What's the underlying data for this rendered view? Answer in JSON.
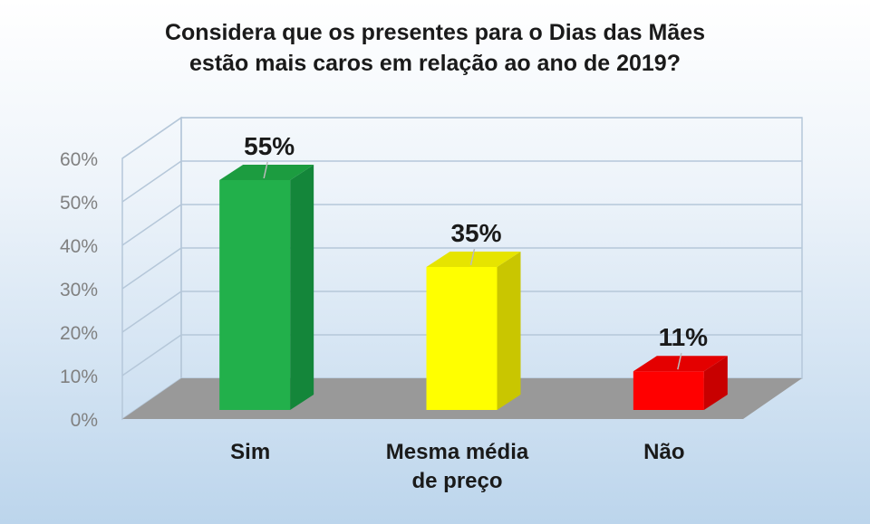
{
  "chart_data": {
    "type": "bar",
    "title_lines": [
      "Considera que os presentes para o Dias das Mães",
      "estão mais  caros em relação ao ano de 2019?"
    ],
    "categories": [
      [
        "Sim"
      ],
      [
        "Mesma média",
        "de preço"
      ],
      [
        "Não"
      ]
    ],
    "values": [
      55,
      35,
      11
    ],
    "value_labels": [
      "55%",
      "35%",
      "11%"
    ],
    "bar_colors": [
      "#22b04b",
      "#ffff00",
      "#ff0000"
    ],
    "bar_side_colors": [
      "#14863a",
      "#c9c600",
      "#c80000"
    ],
    "bar_top_colors": [
      "#1c9c40",
      "#e6e400",
      "#e40000"
    ],
    "ylim": [
      0,
      60
    ],
    "yticks": [
      0,
      10,
      20,
      30,
      40,
      50,
      60
    ],
    "ytick_labels": [
      "0%",
      "10%",
      "20%",
      "30%",
      "40%",
      "50%",
      "60%"
    ],
    "grid": true,
    "legend": "none",
    "floor_color": "#999999",
    "grid_color": "#b5c7d9"
  }
}
